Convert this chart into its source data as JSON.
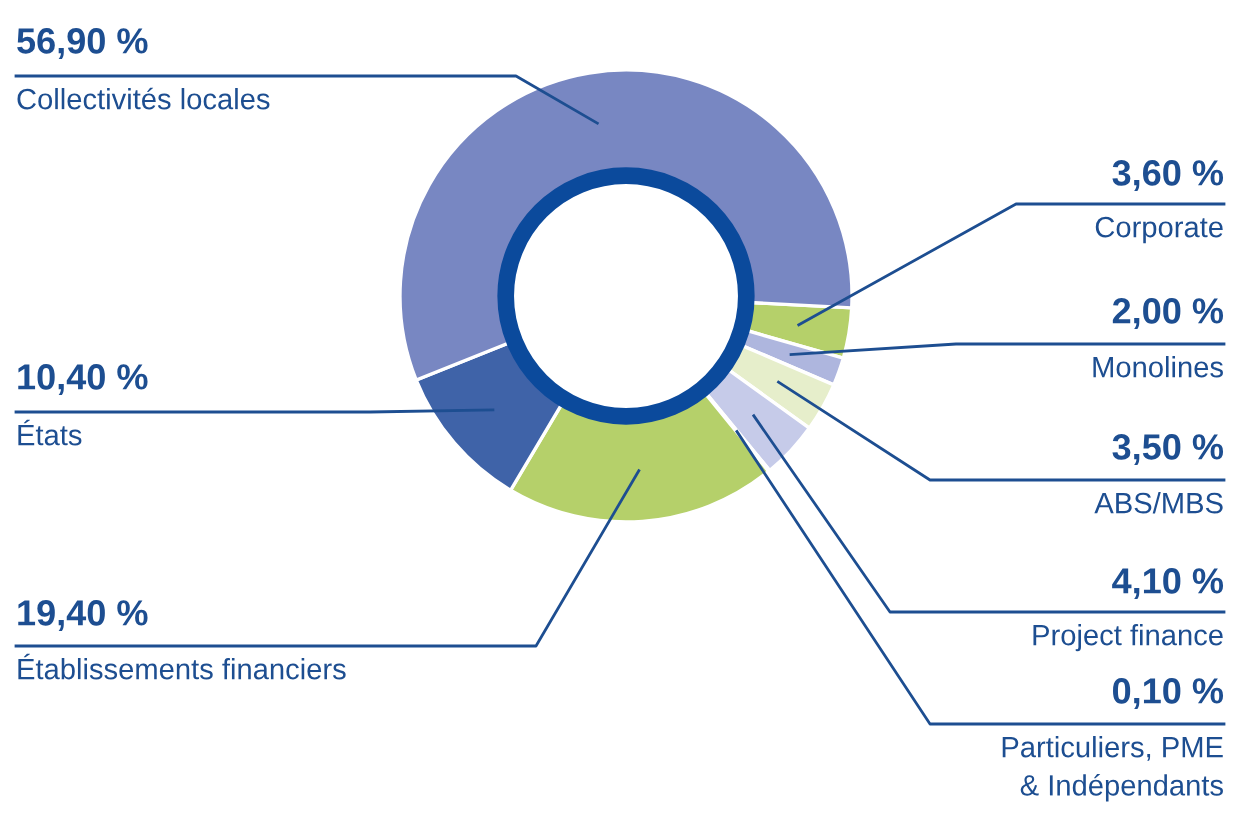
{
  "chart_data": {
    "type": "donut",
    "categories": [
      "Corporate",
      "Monolines",
      "ABS/MBS",
      "Project finance",
      "Particuliers, PME\n& Indépendants",
      "Établissements financiers",
      "États",
      "Collectivités locales"
    ],
    "values": [
      3.6,
      2.0,
      3.5,
      4.1,
      0.1,
      19.4,
      10.4,
      56.9
    ],
    "value_labels": [
      "3,60 %",
      "2,00 %",
      "3,50 %",
      "4,10 %",
      "0,10 %",
      "19,40 %",
      "10,40 %",
      "56,90 %"
    ],
    "colors": [
      "#b5d06a",
      "#aeb6de",
      "#e6eecb",
      "#c6cbe9",
      "#eef0f8",
      "#b5d06a",
      "#3f63a8",
      "#7887c2"
    ]
  }
}
